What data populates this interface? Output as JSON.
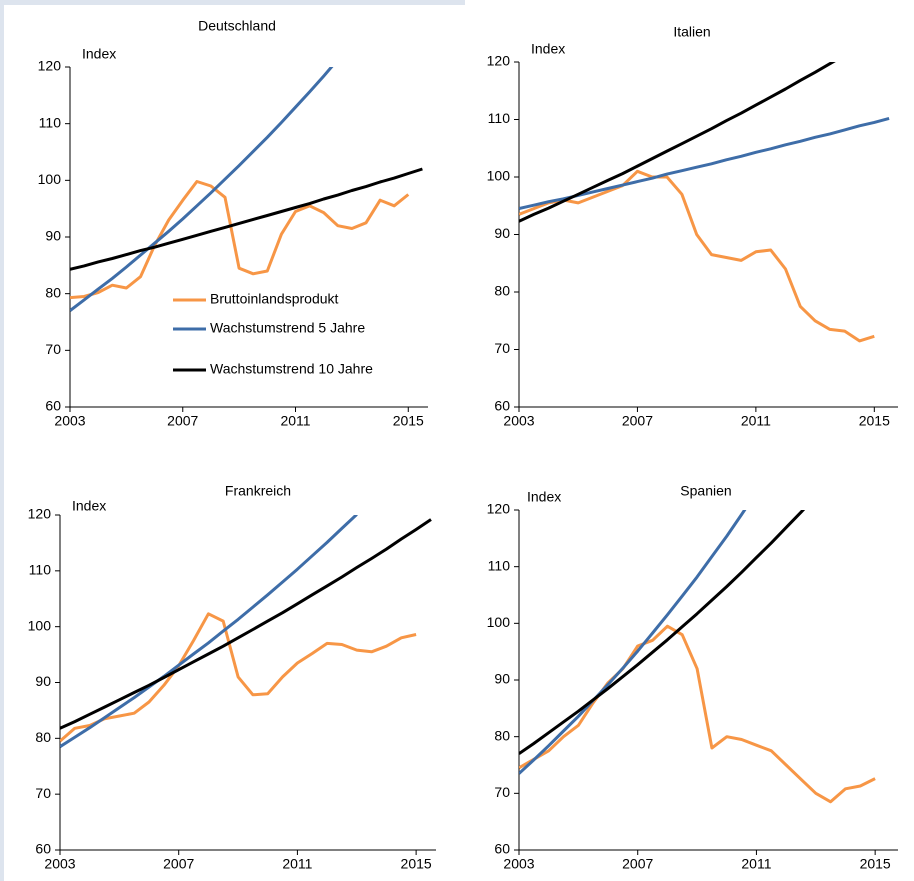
{
  "chart_data": [
    {
      "type": "line",
      "title": "Deutschland",
      "ylabel": "Index",
      "x": [
        2003,
        2003.5,
        2004,
        2004.5,
        2005,
        2005.5,
        2006,
        2006.5,
        2007,
        2007.5,
        2008,
        2008.5,
        2009,
        2009.5,
        2010,
        2010.5,
        2011,
        2011.5,
        2012,
        2012.5,
        2013,
        2013.5,
        2014,
        2014.5,
        2015,
        2015.5
      ],
      "xlim": [
        2003,
        2015.7
      ],
      "xticks": [
        2003,
        2007,
        2011,
        2015
      ],
      "ylim": [
        60,
        120
      ],
      "yticks": [
        60,
        70,
        80,
        90,
        100,
        110,
        120
      ],
      "legend": true,
      "series": [
        {
          "name": "Bruttoinlandsprodukt",
          "color": "#f79646",
          "values": [
            79.3,
            79.5,
            80.2,
            81.5,
            81,
            83,
            88.5,
            93,
            96.5,
            99.8,
            99,
            97,
            84.5,
            83.5,
            84,
            90.5,
            94.5,
            95.5,
            94.3,
            92,
            91.5,
            92.5,
            96.5,
            95.5,
            97.5,
            null
          ]
        },
        {
          "name": "Wachstumstrend 5 Jahre",
          "color": "#3e6da8",
          "values": [
            77,
            78.9,
            80.8,
            82.7,
            84.7,
            86.8,
            88.9,
            91.0,
            93.2,
            95.5,
            97.8,
            100.2,
            102.6,
            105.1,
            107.6,
            110.2,
            112.9,
            115.6,
            118.4,
            121.3,
            null,
            null,
            null,
            null,
            null,
            null
          ]
        },
        {
          "name": "Wachstumstrend 10 Jahre",
          "color": "#000000",
          "values": [
            84.3,
            84.9,
            85.6,
            86.2,
            86.9,
            87.6,
            88.2,
            88.9,
            89.6,
            90.3,
            91.0,
            91.7,
            92.4,
            93.1,
            93.8,
            94.5,
            95.2,
            95.9,
            96.7,
            97.4,
            98.2,
            98.9,
            99.7,
            100.4,
            101.2,
            102.0
          ]
        }
      ]
    },
    {
      "type": "line",
      "title": "Italien",
      "ylabel": "Index",
      "x": [
        2003,
        2003.5,
        2004,
        2004.5,
        2005,
        2005.5,
        2006,
        2006.5,
        2007,
        2007.5,
        2008,
        2008.5,
        2009,
        2009.5,
        2010,
        2010.5,
        2011,
        2011.5,
        2012,
        2012.5,
        2013,
        2013.5,
        2014,
        2014.5,
        2015,
        2015.5
      ],
      "xlim": [
        2003,
        2015.8
      ],
      "xticks": [
        2003,
        2007,
        2011,
        2015
      ],
      "ylim": [
        60,
        120
      ],
      "yticks": [
        60,
        70,
        80,
        90,
        100,
        110,
        120
      ],
      "series": [
        {
          "color": "#f79646",
          "values": [
            93.5,
            94.5,
            95.5,
            96,
            95.5,
            96.5,
            97.5,
            98.5,
            101,
            100,
            100,
            97,
            90,
            86.5,
            86,
            85.5,
            87,
            87.3,
            84,
            77.5,
            75,
            73.5,
            73.2,
            71.5,
            72.3,
            null
          ]
        },
        {
          "color": "#3e6da8",
          "values": [
            94.5,
            95.1,
            95.7,
            96.2,
            96.8,
            97.4,
            98.0,
            98.6,
            99.2,
            99.8,
            100.5,
            101.1,
            101.7,
            102.3,
            103.0,
            103.6,
            104.3,
            104.9,
            105.6,
            106.2,
            106.9,
            107.5,
            108.2,
            108.9,
            109.5,
            110.2
          ]
        },
        {
          "color": "#000000",
          "values": [
            92.3,
            93.5,
            94.6,
            95.8,
            97.0,
            98.2,
            99.4,
            100.6,
            101.9,
            103.2,
            104.5,
            105.8,
            107.1,
            108.4,
            109.8,
            111.1,
            112.5,
            113.9,
            115.3,
            116.8,
            118.2,
            119.7,
            121.2,
            null,
            null,
            null
          ]
        }
      ]
    },
    {
      "type": "line",
      "title": "Frankreich",
      "ylabel": "Index",
      "x": [
        2003,
        2003.5,
        2004,
        2004.5,
        2005,
        2005.5,
        2006,
        2006.5,
        2007,
        2007.5,
        2008,
        2008.5,
        2009,
        2009.5,
        2010,
        2010.5,
        2011,
        2011.5,
        2012,
        2012.5,
        2013,
        2013.5,
        2014,
        2014.5,
        2015,
        2015.5
      ],
      "xlim": [
        2003,
        2015.67
      ],
      "xticks": [
        2003,
        2007,
        2011,
        2015
      ],
      "ylim": [
        60,
        120
      ],
      "yticks": [
        60,
        70,
        80,
        90,
        100,
        110,
        120
      ],
      "series": [
        {
          "color": "#f79646",
          "values": [
            79.5,
            81.8,
            82.3,
            83.5,
            84,
            84.5,
            86.5,
            89.5,
            93,
            97.5,
            102.3,
            101,
            91,
            87.8,
            88,
            91,
            93.5,
            95.2,
            97,
            96.8,
            95.8,
            95.5,
            96.5,
            98,
            98.6,
            null
          ]
        },
        {
          "color": "#3e6da8",
          "values": [
            78.5,
            80.2,
            81.9,
            83.7,
            85.5,
            87.3,
            89.2,
            91.1,
            93.1,
            95.1,
            97.1,
            99.2,
            101.3,
            103.5,
            105.7,
            108.0,
            110.3,
            112.7,
            115.1,
            117.6,
            120.1,
            null,
            null,
            null,
            null,
            null
          ]
        },
        {
          "color": "#000000",
          "values": [
            81.8,
            83.0,
            84.3,
            85.6,
            86.9,
            88.2,
            89.5,
            90.9,
            92.3,
            93.7,
            95.1,
            96.5,
            98.0,
            99.5,
            101.0,
            102.5,
            104.1,
            105.7,
            107.3,
            108.9,
            110.6,
            112.2,
            113.9,
            115.7,
            117.4,
            119.2
          ]
        }
      ]
    },
    {
      "type": "line",
      "title": "Spanien",
      "ylabel": "Index",
      "x": [
        2003,
        2003.5,
        2004,
        2004.5,
        2005,
        2005.5,
        2006,
        2006.5,
        2007,
        2007.5,
        2008,
        2008.5,
        2009,
        2009.5,
        2010,
        2010.5,
        2011,
        2011.5,
        2012,
        2012.5,
        2013,
        2013.5,
        2014,
        2014.5,
        2015,
        2015.5
      ],
      "xlim": [
        2003,
        2015.77
      ],
      "xticks": [
        2003,
        2007,
        2011,
        2015
      ],
      "ylim": [
        60,
        120
      ],
      "yticks": [
        60,
        70,
        80,
        90,
        100,
        110,
        120
      ],
      "series": [
        {
          "color": "#f79646",
          "values": [
            74.5,
            76,
            77.5,
            80,
            82,
            86,
            89.5,
            92,
            96,
            97,
            99.5,
            98,
            92,
            78,
            80,
            79.5,
            78.5,
            77.5,
            75,
            72.5,
            70,
            68.5,
            70.8,
            71.3,
            72.6,
            null
          ]
        },
        {
          "color": "#3e6da8",
          "values": [
            73.5,
            75.9,
            78.4,
            81.0,
            83.6,
            86.4,
            89.2,
            92.1,
            95.1,
            98.3,
            101.5,
            104.8,
            108.2,
            111.8,
            115.4,
            119.2,
            123.1,
            null,
            null,
            null,
            null,
            null,
            null,
            null,
            null,
            null
          ]
        },
        {
          "color": "#000000",
          "values": [
            77,
            78.8,
            80.7,
            82.6,
            84.5,
            86.5,
            88.5,
            90.6,
            92.7,
            94.9,
            97.1,
            99.4,
            101.7,
            104.1,
            106.5,
            109.0,
            111.6,
            114.2,
            116.9,
            119.6,
            122.4,
            null,
            null,
            null,
            null,
            null
          ]
        }
      ]
    }
  ]
}
